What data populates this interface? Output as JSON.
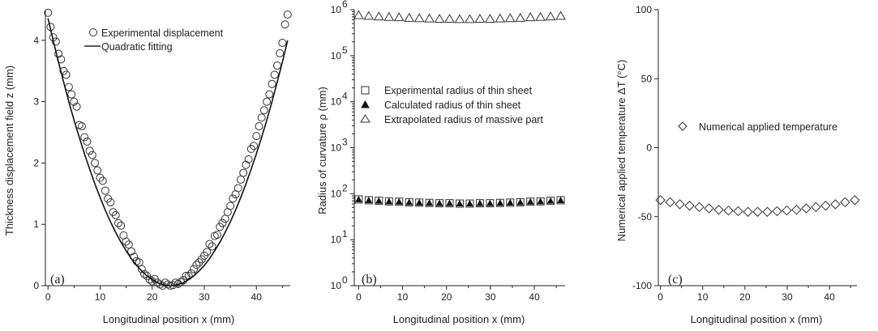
{
  "chart_data": [
    {
      "type": "scatter",
      "panel_label": "(a)",
      "xlabel": "Longitudinal position x (mm)",
      "ylabel": "Thickness displacement field z (mm)",
      "xlim": [
        -0.5,
        46.5
      ],
      "ylim": [
        0,
        4.5
      ],
      "xticks": [
        "0",
        "10",
        "20",
        "30",
        "40"
      ],
      "yticks": [
        "0",
        "1",
        "2",
        "3",
        "4"
      ],
      "legend": [
        "Experimental displacement",
        "Quadratic fitting"
      ],
      "legend_position": "top",
      "series": [
        {
          "name": "Experimental displacement",
          "marker": "open-circle",
          "x": [
            0,
            0.5,
            1.0,
            1.5,
            2.0,
            2.5,
            3.0,
            3.5,
            4.0,
            4.5,
            5.0,
            5.5,
            6.0,
            6.5,
            7.0,
            7.5,
            8.0,
            8.5,
            9.0,
            9.5,
            10.0,
            10.5,
            11.0,
            11.5,
            12.0,
            12.5,
            13.0,
            13.5,
            14.0,
            14.5,
            15.0,
            15.5,
            16.0,
            16.5,
            17.0,
            17.5,
            18.0,
            18.5,
            19.0,
            19.5,
            20.0,
            20.5,
            21.0,
            21.5,
            22.0,
            22.5,
            23.0,
            23.5,
            24.0,
            24.5,
            25.0,
            25.5,
            26.0,
            26.5,
            27.0,
            27.5,
            28.0,
            28.5,
            29.0,
            29.5,
            30.0,
            30.5,
            31.0,
            31.5,
            32.0,
            32.5,
            33.0,
            33.5,
            34.0,
            34.5,
            35.0,
            35.5,
            36.0,
            36.5,
            37.0,
            37.5,
            38.0,
            38.5,
            39.0,
            39.5,
            40.0,
            40.5,
            41.0,
            41.5,
            42.0,
            42.5,
            43.0,
            43.5,
            44.0,
            44.5,
            45.0,
            45.5,
            46.0
          ],
          "y": [
            4.45,
            4.22,
            4.05,
            3.98,
            3.78,
            3.69,
            3.5,
            3.44,
            3.24,
            3.12,
            3.0,
            2.92,
            2.62,
            2.6,
            2.42,
            2.35,
            2.2,
            2.13,
            2.0,
            1.88,
            1.76,
            1.71,
            1.55,
            1.42,
            1.36,
            1.2,
            1.15,
            1.02,
            0.98,
            0.82,
            0.72,
            0.67,
            0.56,
            0.47,
            0.4,
            0.38,
            0.27,
            0.19,
            0.16,
            0.1,
            0.07,
            0.11,
            0.05,
            0.02,
            0.0,
            0.05,
            0.02,
            0.0,
            0.01,
            0.05,
            0.03,
            0.06,
            0.09,
            0.16,
            0.16,
            0.2,
            0.27,
            0.34,
            0.38,
            0.43,
            0.49,
            0.55,
            0.68,
            0.64,
            0.81,
            0.83,
            0.96,
            1.02,
            1.09,
            1.2,
            1.3,
            1.42,
            1.49,
            1.59,
            1.73,
            1.84,
            1.97,
            2.06,
            2.23,
            2.28,
            2.44,
            2.6,
            2.74,
            2.86,
            3.0,
            3.12,
            3.29,
            3.44,
            3.59,
            3.79,
            3.96,
            4.26,
            4.42
          ]
        },
        {
          "name": "Quadratic fitting",
          "marker": "line",
          "equation": "z = 0.0079*(x-23.5)^2",
          "x": [
            0,
            1,
            2,
            3,
            4,
            5,
            6,
            7,
            8,
            9,
            10,
            11,
            12,
            13,
            14,
            15,
            16,
            17,
            18,
            19,
            20,
            21,
            22,
            23,
            24,
            25,
            26,
            27,
            28,
            29,
            30,
            31,
            32,
            33,
            34,
            35,
            36,
            37,
            38,
            39,
            40,
            41,
            42,
            43,
            44,
            45,
            46
          ],
          "y": [
            4.36,
            4.0,
            3.65,
            3.32,
            3.0,
            2.7,
            2.42,
            2.15,
            1.9,
            1.66,
            1.44,
            1.23,
            1.04,
            0.87,
            0.71,
            0.57,
            0.44,
            0.33,
            0.24,
            0.16,
            0.1,
            0.05,
            0.02,
            0.0,
            0.0,
            0.02,
            0.05,
            0.1,
            0.16,
            0.24,
            0.33,
            0.44,
            0.57,
            0.71,
            0.87,
            1.04,
            1.23,
            1.44,
            1.66,
            1.9,
            2.15,
            2.42,
            2.7,
            3.0,
            3.32,
            3.65,
            4.0
          ]
        }
      ]
    },
    {
      "type": "scatter",
      "panel_label": "(b)",
      "xlabel": "Longitudinal position x (mm)",
      "ylabel": "Radius of curvature ρ (mm)",
      "yscale": "log",
      "xlim": [
        -1,
        47
      ],
      "ylim": [
        1,
        1000000
      ],
      "xticks": [
        "0",
        "10",
        "20",
        "30",
        "40"
      ],
      "yticks": [
        "10",
        "10",
        "10",
        "10",
        "10",
        "10",
        "10"
      ],
      "ytick_exponents": [
        "0",
        "1",
        "2",
        "3",
        "4",
        "5",
        "6"
      ],
      "legend": [
        "Experimental radius of thin sheet",
        "Calculated radius of thin sheet",
        "Extrapolated radius of massive part"
      ],
      "legend_position": "middle-left",
      "series": [
        {
          "name": "Experimental radius of thin sheet",
          "marker": "open-square",
          "x": [
            0,
            2.3,
            4.6,
            6.9,
            9.2,
            11.5,
            13.8,
            16.1,
            18.4,
            20.7,
            23.0,
            25.3,
            27.6,
            29.9,
            32.2,
            34.5,
            36.8,
            39.1,
            41.4,
            43.7,
            46.0
          ],
          "y": [
            75,
            72,
            70,
            68,
            67,
            65,
            64,
            63,
            62,
            62,
            61,
            61,
            62,
            62,
            63,
            64,
            65,
            67,
            68,
            70,
            72
          ]
        },
        {
          "name": "Calculated radius of thin sheet",
          "marker": "filled-triangle",
          "x": [
            0,
            2.3,
            4.6,
            6.9,
            9.2,
            11.5,
            13.8,
            16.1,
            18.4,
            20.7,
            23.0,
            25.3,
            27.6,
            29.9,
            32.2,
            34.5,
            36.8,
            39.1,
            41.4,
            43.7,
            46.0
          ],
          "y": [
            75,
            72,
            70,
            68,
            67,
            65,
            64,
            63,
            62,
            62,
            61,
            61,
            62,
            62,
            63,
            64,
            65,
            67,
            68,
            70,
            72
          ]
        },
        {
          "name": "Extrapolated radius of massive part",
          "marker": "open-triangle",
          "x": [
            0,
            2.3,
            4.6,
            6.9,
            9.2,
            11.5,
            13.8,
            16.1,
            18.4,
            20.7,
            23.0,
            25.3,
            27.6,
            29.9,
            32.2,
            34.5,
            36.8,
            39.1,
            41.4,
            43.7,
            46.0
          ],
          "y": [
            770000,
            740000,
            720000,
            700000,
            690000,
            670000,
            660000,
            650000,
            640000,
            640000,
            630000,
            630000,
            640000,
            640000,
            650000,
            660000,
            670000,
            690000,
            700000,
            720000,
            740000
          ]
        }
      ]
    },
    {
      "type": "scatter",
      "panel_label": "(c)",
      "xlabel": "Longitudinal position x (mm)",
      "ylabel": "Numerical applied temperature ΔT (°C)",
      "xlim": [
        -0.5,
        46.5
      ],
      "ylim": [
        -100,
        100
      ],
      "xticks": [
        "0",
        "10",
        "20",
        "30",
        "40"
      ],
      "yticks": [
        "-100",
        "-50",
        "0",
        "50",
        "100"
      ],
      "legend": [
        "Numerical applied temperature"
      ],
      "legend_position": "upper-middle",
      "series": [
        {
          "name": "Numerical applied temperature",
          "marker": "open-diamond",
          "x": [
            0,
            2.3,
            4.6,
            6.9,
            9.2,
            11.5,
            13.8,
            16.1,
            18.4,
            20.7,
            23.0,
            25.3,
            27.6,
            29.9,
            32.2,
            34.5,
            36.8,
            39.1,
            41.4,
            43.7,
            46.0
          ],
          "y": [
            -38,
            -39.5,
            -41,
            -42,
            -43,
            -44,
            -45,
            -45.5,
            -46,
            -46.5,
            -46.5,
            -46.5,
            -46,
            -45.5,
            -45,
            -44,
            -43,
            -42,
            -41,
            -39.5,
            -38
          ]
        }
      ]
    }
  ]
}
